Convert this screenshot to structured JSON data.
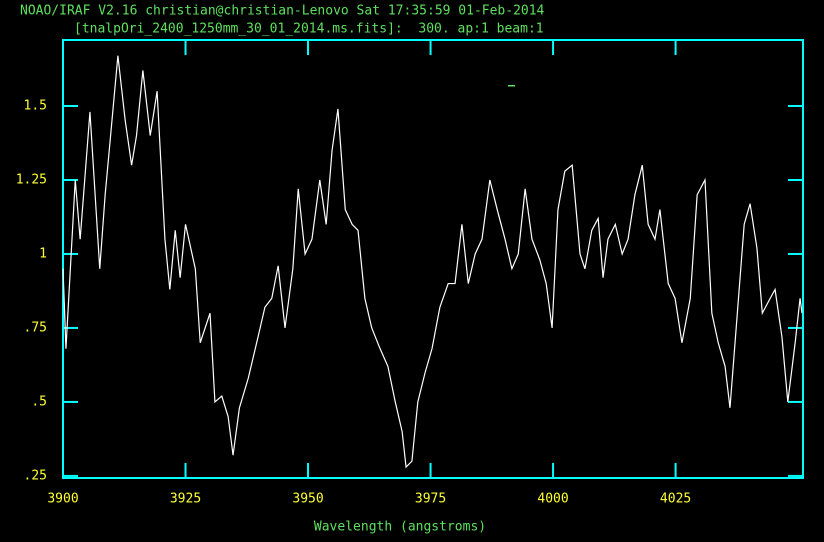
{
  "chart_data": {
    "type": "line",
    "title": "NOAO/IRAF V2.16 christian@christian-Lenovo Sat 17:35:59 01-Feb-2014",
    "subtitle": "[tnalpOri_2400_1250mm_30_01_2014.ms.fits]:  300. ap:1 beam:1",
    "x_label": "Wavelength (angstroms)",
    "xlim": [
      3900,
      4051
    ],
    "ylim": [
      0.243,
      1.723
    ],
    "xticks": [
      3900,
      3925,
      3950,
      3975,
      4000,
      4025
    ],
    "yticks": [
      {
        "value": 0.25,
        "label": ".25"
      },
      {
        "value": 0.5,
        "label": ".5"
      },
      {
        "value": 0.75,
        "label": ".75"
      },
      1,
      1.25,
      1.5
    ],
    "color": "#ffffff",
    "x": [
      3900.0,
      3900.6,
      3902.5,
      3903.5,
      3905.5,
      3907.5,
      3908.6,
      3909.6,
      3911.2,
      3912.7,
      3914.0,
      3915.0,
      3916.3,
      3917.8,
      3919.2,
      3920.8,
      3921.8,
      3922.9,
      3923.9,
      3925.0,
      3927.0,
      3928.0,
      3930.0,
      3931.0,
      3932.4,
      3933.7,
      3934.7,
      3936.0,
      3937.8,
      3939.8,
      3941.2,
      3942.6,
      3943.9,
      3945.3,
      3946.9,
      3948.0,
      3949.4,
      3950.8,
      3952.4,
      3953.7,
      3954.9,
      3956.1,
      3957.6,
      3959.0,
      3960.2,
      3961.6,
      3963.0,
      3964.7,
      3966.3,
      3967.8,
      3969.2,
      3970.0,
      3971.2,
      3972.4,
      3973.9,
      3975.3,
      3976.9,
      3978.6,
      3980.0,
      3981.4,
      3982.7,
      3984.1,
      3985.5,
      3987.1,
      3988.6,
      3990.2,
      3991.6,
      3992.9,
      3994.3,
      3995.7,
      3997.3,
      3998.6,
      3999.8,
      4001.0,
      4002.4,
      4003.9,
      4005.5,
      4006.5,
      4007.9,
      4009.2,
      4010.2,
      4011.2,
      4012.7,
      4014.1,
      4015.3,
      4016.7,
      4018.2,
      4019.4,
      4020.8,
      4021.8,
      4023.5,
      4024.9,
      4026.3,
      4028.0,
      4029.4,
      4031.0,
      4032.4,
      4033.7,
      4035.1,
      4036.1,
      4037.6,
      4039.0,
      4040.2,
      4041.6,
      4042.7,
      4044.3,
      4045.3,
      4046.7,
      4047.9,
      4049.4,
      4050.4,
      4050.8
    ],
    "values": [
      0.95,
      0.68,
      1.25,
      1.05,
      1.48,
      0.95,
      1.2,
      1.38,
      1.67,
      1.45,
      1.3,
      1.4,
      1.62,
      1.4,
      1.55,
      1.05,
      0.88,
      1.08,
      0.92,
      1.1,
      0.95,
      0.7,
      0.8,
      0.5,
      0.52,
      0.45,
      0.32,
      0.48,
      0.58,
      0.72,
      0.82,
      0.85,
      0.96,
      0.75,
      0.95,
      1.22,
      1.0,
      1.05,
      1.25,
      1.1,
      1.35,
      1.49,
      1.15,
      1.1,
      1.08,
      0.85,
      0.75,
      0.68,
      0.62,
      0.5,
      0.4,
      0.28,
      0.3,
      0.5,
      0.6,
      0.68,
      0.82,
      0.9,
      0.9,
      1.1,
      0.9,
      1.0,
      1.05,
      1.25,
      1.15,
      1.05,
      0.95,
      1.0,
      1.22,
      1.05,
      0.98,
      0.9,
      0.75,
      1.15,
      1.28,
      1.3,
      1.0,
      0.95,
      1.08,
      1.12,
      0.92,
      1.05,
      1.1,
      1.0,
      1.05,
      1.2,
      1.3,
      1.1,
      1.05,
      1.15,
      0.9,
      0.85,
      0.7,
      0.85,
      1.2,
      1.25,
      0.8,
      0.7,
      0.62,
      0.48,
      0.8,
      1.1,
      1.17,
      1.02,
      0.8,
      0.85,
      0.88,
      0.72,
      0.5,
      0.7,
      0.85,
      0.8
    ]
  }
}
